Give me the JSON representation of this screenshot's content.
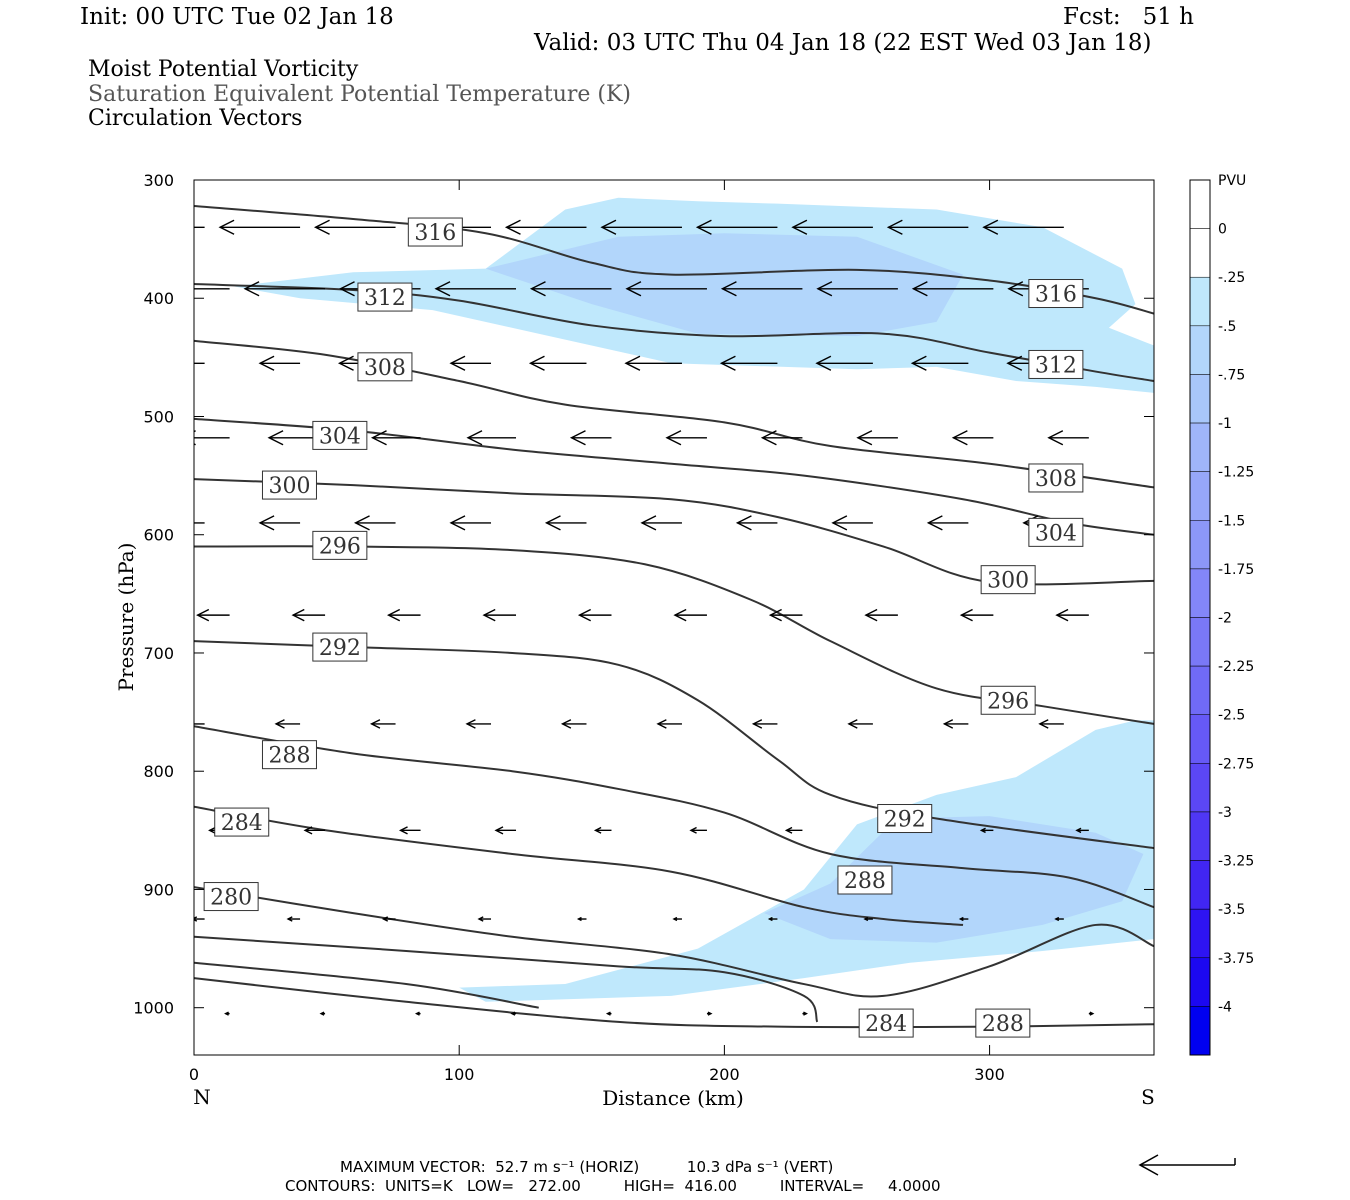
{
  "header": {
    "init": "Init: 00 UTC Tue 02 Jan 18",
    "fcst": "Fcst:   51 h",
    "valid": "Valid: 03 UTC Thu 04 Jan 18 (22 EST Wed 03 Jan 18)"
  },
  "titles": [
    "Moist Potential Vorticity",
    "Saturation Equivalent Potential Temperature (K)",
    "Circulation Vectors"
  ],
  "footer": {
    "line1": "MAXIMUM VECTOR:  52.7 m s⁻¹ (HORIZ)          10.3 dPa s⁻¹ (VERT)",
    "line2": "CONTOURS:  UNITS=K   LOW=   272.00         HIGH=  416.00         INTERVAL=     4.0000"
  },
  "chart_data": {
    "type": "cross-section",
    "xlabel": "Distance (km)",
    "ylabel": "Pressure (hPa)",
    "xlim": [
      0,
      362
    ],
    "ylim": [
      1040,
      300
    ],
    "x_ticks": [
      "0",
      "100",
      "200",
      "300"
    ],
    "y_ticks": [
      "300",
      "400",
      "500",
      "600",
      "700",
      "800",
      "900",
      "1000"
    ],
    "x_end_labels": {
      "left": "N",
      "right": "S"
    },
    "colorbar": {
      "title": "PVU",
      "levels": [
        "0",
        "-.25",
        "-.5",
        "-.75",
        "-1",
        "-1.25",
        "-1.5",
        "-1.75",
        "-2",
        "-2.25",
        "-2.5",
        "-2.75",
        "-3",
        "-3.25",
        "-3.5",
        "-3.75",
        "-4"
      ],
      "colors": [
        "#ffffff",
        "#ffffff",
        "#bfe8fc",
        "#b2d6fb",
        "#a8c6fa",
        "#9fb5fa",
        "#96a7f9",
        "#8c97f8",
        "#8386f8",
        "#7a78f7",
        "#706af6",
        "#6659f6",
        "#5b47f5",
        "#4f37f4",
        "#4126f3",
        "#2e14f2",
        "#1c08f1",
        "#0000f0"
      ]
    },
    "contour_labels": [
      {
        "text": "316",
        "x": 91,
        "p": 344
      },
      {
        "text": "312",
        "x": 72,
        "p": 399
      },
      {
        "text": "308",
        "x": 72,
        "p": 458
      },
      {
        "text": "304",
        "x": 55,
        "p": 516
      },
      {
        "text": "300",
        "x": 36,
        "p": 558
      },
      {
        "text": "296",
        "x": 55,
        "p": 609
      },
      {
        "text": "292",
        "x": 55,
        "p": 695
      },
      {
        "text": "288",
        "x": 36,
        "p": 786
      },
      {
        "text": "284",
        "x": 18,
        "p": 843
      },
      {
        "text": "280",
        "x": 14,
        "p": 906
      },
      {
        "text": "316",
        "x": 325,
        "p": 396
      },
      {
        "text": "312",
        "x": 325,
        "p": 456
      },
      {
        "text": "308",
        "x": 325,
        "p": 552
      },
      {
        "text": "304",
        "x": 325,
        "p": 598
      },
      {
        "text": "300",
        "x": 307,
        "p": 638
      },
      {
        "text": "296",
        "x": 307,
        "p": 740
      },
      {
        "text": "292",
        "x": 268,
        "p": 840
      },
      {
        "text": "288",
        "x": 253,
        "p": 892
      },
      {
        "text": "284",
        "x": 261,
        "p": 1013
      },
      {
        "text": "288",
        "x": 305,
        "p": 1013
      }
    ],
    "contours": [
      [
        [
          0,
          322
        ],
        [
          60,
          333
        ],
        [
          110,
          345
        ],
        [
          150,
          370
        ],
        [
          180,
          380
        ],
        [
          250,
          376
        ],
        [
          300,
          385
        ],
        [
          340,
          400
        ],
        [
          362,
          413
        ]
      ],
      [
        [
          0,
          388
        ],
        [
          60,
          393
        ],
        [
          100,
          402
        ],
        [
          150,
          423
        ],
        [
          200,
          432
        ],
        [
          260,
          430
        ],
        [
          300,
          446
        ],
        [
          340,
          462
        ],
        [
          362,
          470
        ]
      ],
      [
        [
          0,
          436
        ],
        [
          50,
          448
        ],
        [
          100,
          470
        ],
        [
          140,
          490
        ],
        [
          200,
          505
        ],
        [
          240,
          525
        ],
        [
          300,
          540
        ],
        [
          362,
          560
        ]
      ],
      [
        [
          0,
          502
        ],
        [
          60,
          512
        ],
        [
          120,
          528
        ],
        [
          180,
          540
        ],
        [
          230,
          550
        ],
        [
          290,
          570
        ],
        [
          330,
          590
        ],
        [
          362,
          600
        ]
      ],
      [
        [
          0,
          553
        ],
        [
          60,
          558
        ],
        [
          120,
          565
        ],
        [
          180,
          570
        ],
        [
          220,
          585
        ],
        [
          260,
          610
        ],
        [
          300,
          640
        ],
        [
          362,
          639
        ]
      ],
      [
        [
          0,
          610
        ],
        [
          60,
          610
        ],
        [
          120,
          613
        ],
        [
          170,
          625
        ],
        [
          210,
          655
        ],
        [
          240,
          690
        ],
        [
          280,
          730
        ],
        [
          320,
          745
        ],
        [
          362,
          760
        ]
      ],
      [
        [
          0,
          690
        ],
        [
          60,
          695
        ],
        [
          120,
          700
        ],
        [
          160,
          710
        ],
        [
          190,
          740
        ],
        [
          220,
          790
        ],
        [
          240,
          820
        ],
        [
          280,
          840
        ],
        [
          362,
          865
        ]
      ],
      [
        [
          0,
          762
        ],
        [
          60,
          785
        ],
        [
          120,
          800
        ],
        [
          160,
          815
        ],
        [
          200,
          835
        ],
        [
          240,
          870
        ],
        [
          290,
          882
        ],
        [
          330,
          890
        ],
        [
          362,
          915
        ]
      ],
      [
        [
          0,
          830
        ],
        [
          50,
          850
        ],
        [
          120,
          870
        ],
        [
          180,
          885
        ],
        [
          230,
          915
        ],
        [
          260,
          925
        ],
        [
          290,
          930
        ]
      ],
      [
        [
          0,
          898
        ],
        [
          60,
          920
        ],
        [
          120,
          940
        ],
        [
          180,
          955
        ],
        [
          230,
          980
        ],
        [
          260,
          990
        ],
        [
          300,
          965
        ],
        [
          340,
          930
        ],
        [
          362,
          948
        ]
      ],
      [
        [
          0,
          940
        ],
        [
          80,
          952
        ],
        [
          160,
          965
        ],
        [
          200,
          970
        ],
        [
          230,
          990
        ],
        [
          235,
          1012
        ]
      ],
      [
        [
          0,
          962
        ],
        [
          80,
          980
        ],
        [
          130,
          1000
        ]
      ],
      [
        [
          0,
          975
        ],
        [
          80,
          995
        ],
        [
          160,
          1012
        ],
        [
          220,
          1016
        ],
        [
          300,
          1016
        ],
        [
          362,
          1014
        ]
      ]
    ],
    "pv_regions": [
      {
        "level": "-.25",
        "points": [
          [
            15,
            390
          ],
          [
            60,
            378
          ],
          [
            110,
            375
          ],
          [
            140,
            325
          ],
          [
            160,
            315
          ],
          [
            190,
            318
          ],
          [
            220,
            320
          ],
          [
            280,
            325
          ],
          [
            320,
            340
          ],
          [
            350,
            375
          ],
          [
            355,
            405
          ],
          [
            345,
            425
          ],
          [
            362,
            440
          ],
          [
            362,
            480
          ],
          [
            340,
            475
          ],
          [
            310,
            470
          ],
          [
            280,
            458
          ],
          [
            250,
            460
          ],
          [
            180,
            455
          ],
          [
            130,
            430
          ],
          [
            90,
            410
          ],
          [
            40,
            400
          ]
        ]
      },
      {
        "level": "-.5",
        "points": [
          [
            110,
            375
          ],
          [
            160,
            348
          ],
          [
            200,
            345
          ],
          [
            250,
            348
          ],
          [
            290,
            380
          ],
          [
            280,
            420
          ],
          [
            250,
            432
          ],
          [
            190,
            430
          ],
          [
            150,
            405
          ]
        ]
      },
      {
        "level": "-.25",
        "points": [
          [
            140,
            980
          ],
          [
            190,
            950
          ],
          [
            230,
            900
          ],
          [
            250,
            845
          ],
          [
            280,
            820
          ],
          [
            310,
            805
          ],
          [
            340,
            765
          ],
          [
            355,
            757
          ],
          [
            362,
            757
          ],
          [
            362,
            942
          ],
          [
            320,
            952
          ],
          [
            270,
            962
          ],
          [
            230,
            975
          ],
          [
            180,
            990
          ],
          [
            110,
            995
          ],
          [
            100,
            983
          ]
        ]
      },
      {
        "level": "-.5",
        "points": [
          [
            215,
            920
          ],
          [
            240,
            895
          ],
          [
            265,
            840
          ],
          [
            300,
            838
          ],
          [
            340,
            852
          ],
          [
            358,
            870
          ],
          [
            350,
            910
          ],
          [
            320,
            930
          ],
          [
            280,
            945
          ],
          [
            240,
            942
          ]
        ]
      }
    ],
    "vectors": [
      {
        "p": 340,
        "u": [
          -20,
          -20,
          -20,
          -20,
          -20,
          -20,
          -20,
          -20,
          -20,
          -20
        ]
      },
      {
        "p": 392,
        "u": [
          -20,
          -20,
          -20,
          -20,
          -20,
          -20,
          -20,
          -20,
          -20,
          -20
        ]
      },
      {
        "p": 455,
        "u": [
          -14,
          -10,
          -14,
          -10,
          -14,
          -14,
          -14,
          -14,
          -14,
          -14
        ]
      },
      {
        "p": 518,
        "u": [
          -12,
          -14,
          -12,
          -12,
          -10,
          -10,
          -10,
          -10,
          -10,
          -10
        ]
      },
      {
        "p": 590,
        "u": [
          -10,
          -10,
          -10,
          -10,
          -10,
          -10,
          -10,
          -10,
          -10,
          -10
        ]
      },
      {
        "p": 668,
        "u": [
          -8,
          -8,
          -8,
          -8,
          -8,
          -8,
          -8,
          -8,
          -8,
          -8
        ]
      },
      {
        "p": 760,
        "u": [
          -6,
          -6,
          -6,
          -6,
          -6,
          -6,
          -6,
          -6,
          -6,
          -6
        ]
      },
      {
        "p": 850,
        "u": [
          -5,
          -5,
          -5,
          -5,
          -4,
          -4,
          -4,
          -3,
          -3,
          -3
        ]
      },
      {
        "p": 925,
        "u": [
          -3,
          -3,
          -3,
          -3,
          -2,
          -2,
          -2,
          -2,
          -2,
          -2
        ]
      },
      {
        "p": 1005,
        "u": [
          -1,
          -1,
          -1,
          -1,
          -1,
          1,
          1,
          1,
          1,
          1
        ]
      }
    ],
    "reference_vector": {
      "direction": "left"
    }
  }
}
